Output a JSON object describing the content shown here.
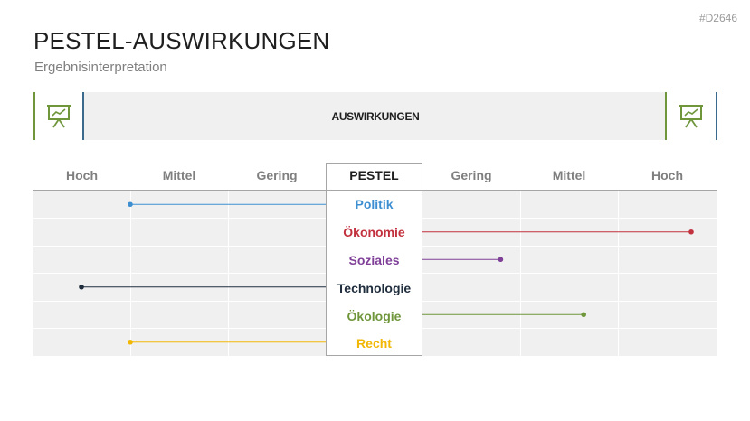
{
  "doc_id": "#D2646",
  "title": "PESTEL-AUSWIRKUNGEN",
  "subtitle": "Ergebnisinterpretation",
  "banner": {
    "label": "AUSWIRKUNGEN",
    "left_icon": "presentation-chart-icon",
    "right_icon": "presentation-chart-icon"
  },
  "colors": {
    "accent_green": "#70963c",
    "accent_blue": "#3a6b8c",
    "politik": "#3d8fd1",
    "oekonomie": "#c2313e",
    "soziales": "#7f3f98",
    "technologie": "#1f2d3d",
    "oekologie": "#70963c",
    "recht": "#f2b705"
  },
  "headers": {
    "left": [
      "Hoch",
      "Mittel",
      "Gering"
    ],
    "center": "PESTEL",
    "right": [
      "Gering",
      "Mittel",
      "Hoch"
    ]
  },
  "chart_data": {
    "type": "diverging-lollipop",
    "scale_left": [
      "Hoch",
      "Mittel",
      "Gering"
    ],
    "scale_right": [
      "Gering",
      "Mittel",
      "Hoch"
    ],
    "factors": [
      {
        "label": "Politik",
        "side": "left",
        "value": 2.0,
        "color": "#3d8fd1"
      },
      {
        "label": "Ökonomie",
        "side": "right",
        "value": 2.75,
        "color": "#c2313e"
      },
      {
        "label": "Soziales",
        "side": "right",
        "value": 0.8,
        "color": "#7f3f98"
      },
      {
        "label": "Technologie",
        "side": "left",
        "value": 2.5,
        "color": "#1f2d3d"
      },
      {
        "label": "Ökologie",
        "side": "right",
        "value": 1.65,
        "color": "#70963c"
      },
      {
        "label": "Recht",
        "side": "left",
        "value": 2.0,
        "color": "#f2b705"
      }
    ]
  }
}
